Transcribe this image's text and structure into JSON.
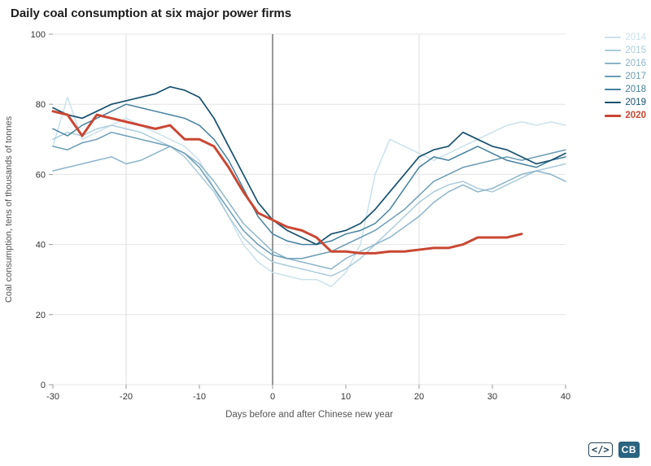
{
  "page": {
    "title": "Daily coal consumption at six major power firms"
  },
  "footer": {
    "code_icon": "</>",
    "logo_text": "CB"
  },
  "colors": {
    "accent_red": "#c94733",
    "grid": "#e4e4e4",
    "grid_vertical_light": "#dcdcdc",
    "zero_day_line": "#555555",
    "tick": "#999999",
    "tick_label": "#333333",
    "axis_label": "#555555"
  },
  "chart_data": {
    "type": "line",
    "title": "Daily coal consumption at six major power firms",
    "xlabel": "Days before and after Chinese new year",
    "ylabel": "Coal consumption, tens of thousands of tonnes",
    "xlim": [
      -30,
      40
    ],
    "ylim": [
      0,
      100
    ],
    "xticks": [
      -30,
      -20,
      -10,
      0,
      10,
      20,
      30,
      40
    ],
    "yticks": [
      0,
      20,
      40,
      60,
      80,
      100
    ],
    "grid": {
      "horizontal": true,
      "vertical_light_at": [
        -20,
        20
      ],
      "vline_dark_at": 0
    },
    "legend_position": "top-right",
    "x": [
      -30,
      -28,
      -26,
      -24,
      -22,
      -20,
      -18,
      -16,
      -14,
      -12,
      -10,
      -8,
      -6,
      -4,
      -2,
      0,
      2,
      4,
      6,
      8,
      10,
      12,
      14,
      16,
      18,
      20,
      22,
      24,
      26,
      28,
      30,
      32,
      34,
      36,
      38,
      40
    ],
    "series": [
      {
        "name": "2014",
        "color": "#cbe1ec",
        "width": 1.5,
        "values": [
          68,
          82,
          70,
          72,
          74,
          76,
          74,
          72,
          70,
          68,
          64,
          56,
          48,
          40,
          35,
          32,
          31,
          30,
          30,
          28,
          32,
          40,
          60,
          70,
          68,
          66,
          64,
          66,
          68,
          70,
          72,
          74,
          75,
          74,
          75,
          74
        ]
      },
      {
        "name": "2015",
        "color": "#aacbdb",
        "width": 1.5,
        "values": [
          70,
          72,
          71,
          73,
          74,
          73,
          72,
          70,
          68,
          65,
          60,
          55,
          48,
          42,
          38,
          35,
          34,
          33,
          32,
          31,
          33,
          36,
          40,
          44,
          48,
          52,
          55,
          57,
          58,
          56,
          55,
          57,
          59,
          61,
          62,
          63
        ]
      },
      {
        "name": "2016",
        "color": "#8cb4c9",
        "width": 1.5,
        "values": [
          61,
          62,
          63,
          64,
          65,
          63,
          64,
          66,
          68,
          66,
          63,
          58,
          52,
          46,
          42,
          38,
          36,
          35,
          34,
          33,
          36,
          38,
          40,
          42,
          45,
          48,
          52,
          55,
          57,
          55,
          56,
          58,
          60,
          61,
          60,
          58
        ]
      },
      {
        "name": "2017",
        "color": "#6b9cb5",
        "width": 1.5,
        "values": [
          68,
          67,
          69,
          70,
          72,
          71,
          70,
          69,
          68,
          66,
          62,
          56,
          50,
          44,
          40,
          37,
          36,
          36,
          37,
          38,
          40,
          42,
          44,
          47,
          50,
          54,
          58,
          60,
          62,
          63,
          64,
          65,
          64,
          65,
          66,
          67
        ]
      },
      {
        "name": "2018",
        "color": "#44809e",
        "width": 1.5,
        "values": [
          73,
          71,
          74,
          76,
          78,
          80,
          79,
          78,
          77,
          76,
          74,
          70,
          64,
          56,
          48,
          43,
          41,
          40,
          40,
          41,
          43,
          44,
          46,
          50,
          56,
          62,
          65,
          64,
          66,
          68,
          66,
          64,
          63,
          62,
          64,
          65
        ]
      },
      {
        "name": "2019",
        "color": "#16506e",
        "width": 1.7,
        "values": [
          79,
          77,
          76,
          78,
          80,
          81,
          82,
          83,
          85,
          84,
          82,
          76,
          68,
          60,
          52,
          47,
          44,
          42,
          40,
          43,
          44,
          46,
          50,
          55,
          60,
          65,
          67,
          68,
          72,
          70,
          68,
          67,
          65,
          63,
          64,
          66
        ]
      },
      {
        "name": "2020",
        "color": "#c94733",
        "width": 3,
        "values": [
          78,
          77,
          71,
          77,
          76,
          75,
          74,
          73,
          74,
          70,
          70,
          68,
          62,
          55,
          49,
          47,
          45,
          44,
          42,
          38,
          38,
          37.5,
          37.5,
          38,
          38,
          38.5,
          39,
          39,
          40,
          42,
          42,
          42,
          43,
          null,
          null,
          null
        ]
      }
    ]
  }
}
